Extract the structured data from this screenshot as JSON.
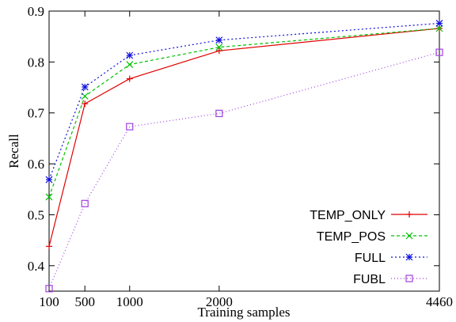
{
  "chart_data": {
    "type": "line",
    "xlabel": "Training samples",
    "ylabel": "Recall",
    "xlim": [
      100,
      4460
    ],
    "ylim": [
      0.35,
      0.9
    ],
    "x_ticks": [
      100,
      500,
      1000,
      2000,
      4460
    ],
    "x_tick_labels": [
      "100",
      "500",
      "1000",
      "2000",
      "4460"
    ],
    "y_ticks": [
      0.4,
      0.5,
      0.6,
      0.7,
      0.8,
      0.9
    ],
    "y_tick_labels": [
      "0.4",
      "0.5",
      "0.6",
      "0.7",
      "0.8",
      "0.9"
    ],
    "legend_position": "bottom-right",
    "grid": false,
    "series": [
      {
        "name": "TEMP_ONLY",
        "color": "#e00000",
        "dash": "solid",
        "marker": "plus",
        "x": [
          100,
          500,
          1000,
          2000,
          4460
        ],
        "y": [
          0.438,
          0.718,
          0.767,
          0.822,
          0.866
        ]
      },
      {
        "name": "TEMP_POS",
        "color": "#00c000",
        "dash": "dashed",
        "marker": "cross",
        "x": [
          100,
          500,
          1000,
          2000,
          4460
        ],
        "y": [
          0.535,
          0.733,
          0.795,
          0.829,
          0.866
        ]
      },
      {
        "name": "FULL",
        "color": "#1010e0",
        "dash": "dotted",
        "marker": "star",
        "x": [
          100,
          500,
          1000,
          2000,
          4460
        ],
        "y": [
          0.569,
          0.751,
          0.813,
          0.843,
          0.876
        ]
      },
      {
        "name": "FUBL",
        "color": "#a040e0",
        "dash": "fine-dotted",
        "marker": "square",
        "x": [
          100,
          500,
          1000,
          2000,
          4460
        ],
        "y": [
          0.355,
          0.522,
          0.673,
          0.699,
          0.819
        ]
      }
    ]
  }
}
